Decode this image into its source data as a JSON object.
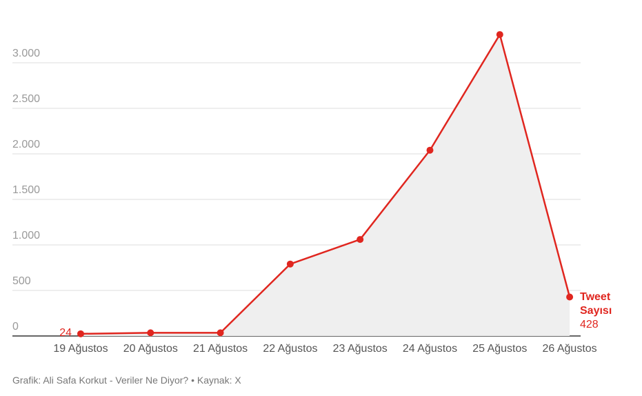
{
  "chart_data": {
    "type": "line",
    "categories": [
      "19 Ağustos",
      "20 Ağustos",
      "21 Ağustos",
      "22 Ağustos",
      "23 Ağustos",
      "24 Ağustos",
      "25 Ağustos",
      "26 Ağustos"
    ],
    "series": [
      {
        "name": "Tweet Sayısı",
        "color": "#e0261f",
        "values": [
          24,
          35,
          35,
          790,
          1060,
          2040,
          3310,
          428
        ]
      }
    ],
    "ylim": [
      0,
      3000
    ],
    "yticks": [
      0,
      500,
      {
        "value": 1000,
        "label": "1.000"
      },
      {
        "value": 1500,
        "label": "1.500"
      },
      {
        "value": 2000,
        "label": "2.000"
      },
      {
        "value": 2500,
        "label": "2.500"
      },
      {
        "value": 3000,
        "label": "3.000"
      }
    ],
    "grid": true,
    "area_fill": "#efefef",
    "footer": "Grafik: Ali Safa Korkut - Veriler Ne Diyor? • Kaynak: X"
  }
}
